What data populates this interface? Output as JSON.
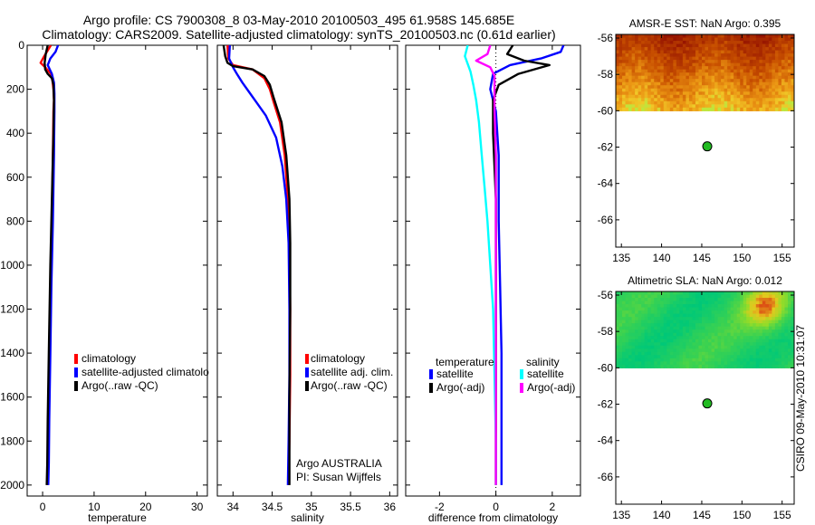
{
  "header": {
    "line1": "Argo profile: CS 7900308_8 03-May-2010 20100503_495 61.958S 145.685E",
    "line2": "Climatology: CARS2009. Satellite-adjusted climatology: synTS_20100503.nc (0.61d earlier)"
  },
  "side_stamp": "CSIRO 09-May-2010 10:31:07",
  "colors": {
    "red": "#ff0000",
    "blue": "#0000ff",
    "black": "#000000",
    "cyan": "#00ffff",
    "magenta": "#ff00ff",
    "marker": "#22bb22"
  },
  "chart_data": [
    {
      "id": "temperature",
      "type": "line",
      "xlabel": "temperature",
      "xlim": [
        -3,
        32
      ],
      "ylim": [
        2050,
        0
      ],
      "xticks": [
        0,
        10,
        20,
        30
      ],
      "yticks": [
        0,
        200,
        400,
        600,
        800,
        1000,
        1200,
        1400,
        1600,
        1800,
        2000
      ],
      "legend": [
        "climatology",
        "satellite-adjusted climatolo",
        "Argo(..raw -QC)"
      ],
      "series": [
        {
          "name": "climatology",
          "color": "red",
          "x": [
            1.6,
            0.3,
            -0.4,
            0.5,
            1.6,
            1.9,
            2.1,
            2.2,
            2.1,
            2.0,
            1.8,
            1.5,
            1.3,
            1.2,
            1.1,
            1.0,
            0.9
          ],
          "y": [
            0,
            50,
            80,
            100,
            130,
            160,
            200,
            250,
            300,
            500,
            800,
            1100,
            1400,
            1600,
            1800,
            1950,
            2000
          ]
        },
        {
          "name": "satellite-adjusted climatology",
          "color": "blue",
          "x": [
            3.0,
            2.5,
            1.5,
            1.0,
            1.8,
            2.2,
            2.3,
            2.3,
            2.2,
            2.0,
            1.7,
            1.5,
            1.3,
            1.2,
            1.1
          ],
          "y": [
            0,
            30,
            60,
            90,
            130,
            170,
            220,
            300,
            500,
            800,
            1100,
            1400,
            1700,
            1900,
            2000
          ]
        },
        {
          "name": "Argo(..raw -QC)",
          "color": "black",
          "x": [
            1.0,
            0.6,
            0.4,
            0.5,
            1.0,
            1.8,
            2.1,
            2.2,
            2.1,
            1.8,
            1.5,
            1.2,
            1.0,
            0.9,
            0.8
          ],
          "y": [
            0,
            40,
            80,
            110,
            130,
            150,
            180,
            250,
            400,
            700,
            1000,
            1400,
            1700,
            1900,
            2000
          ]
        }
      ]
    },
    {
      "id": "salinity",
      "type": "line",
      "xlabel": "salinity",
      "xlim": [
        33.8,
        36.1
      ],
      "ylim": [
        2050,
        0
      ],
      "xticks": [
        34,
        34.5,
        35,
        35.5,
        36
      ],
      "legend": [
        "climatology",
        "satellite adj. clim.",
        "Argo(..raw -QC)"
      ],
      "annotation": [
        "Argo AUSTRALIA",
        "PI: Susan Wijffels"
      ],
      "series": [
        {
          "name": "climatology",
          "color": "red",
          "x": [
            33.93,
            33.94,
            34.0,
            34.25,
            34.4,
            34.47,
            34.52,
            34.6,
            34.66,
            34.7,
            34.72,
            34.73,
            34.73,
            34.72,
            34.71,
            34.71
          ],
          "y": [
            0,
            60,
            90,
            110,
            150,
            200,
            260,
            350,
            500,
            700,
            900,
            1200,
            1500,
            1800,
            1950,
            2000
          ]
        },
        {
          "name": "satellite adj. clim.",
          "color": "blue",
          "x": [
            33.96,
            33.95,
            34.0,
            34.05,
            34.12,
            34.2,
            34.3,
            34.42,
            34.55,
            34.63,
            34.68,
            34.71,
            34.72,
            34.72,
            34.71,
            34.7
          ],
          "y": [
            0,
            60,
            100,
            130,
            170,
            210,
            260,
            320,
            420,
            550,
            700,
            900,
            1200,
            1500,
            1800,
            2000
          ]
        },
        {
          "name": "Argo(..raw -QC)",
          "color": "black",
          "x": [
            33.88,
            33.9,
            33.93,
            34.0,
            34.25,
            34.4,
            34.47,
            34.52,
            34.62,
            34.68,
            34.72,
            34.73,
            34.73,
            34.72,
            34.72
          ],
          "y": [
            0,
            50,
            80,
            95,
            110,
            140,
            180,
            240,
            350,
            500,
            700,
            900,
            1200,
            1600,
            2000
          ]
        }
      ]
    },
    {
      "id": "difference",
      "type": "line",
      "xlabel": "difference from climatology",
      "xlim": [
        -3.2,
        3.0
      ],
      "ylim": [
        2050,
        0
      ],
      "xticks": [
        -2,
        0,
        2
      ],
      "legend_groups": [
        {
          "title": "temperature",
          "entries": [
            "satellite",
            "Argo(-adj)"
          ]
        },
        {
          "title": "salinity",
          "entries": [
            "satellite",
            "Argo(-adj)"
          ]
        }
      ],
      "series": [
        {
          "name": "temperature satellite",
          "color": "blue",
          "x": [
            2.4,
            2.3,
            1.6,
            0.5,
            -0.1,
            -0.2,
            0.0,
            0.1,
            0.1,
            0.15,
            0.2,
            0.2,
            0.2,
            0.2
          ],
          "y": [
            0,
            30,
            60,
            90,
            130,
            200,
            300,
            500,
            800,
            1100,
            1400,
            1700,
            1900,
            2000
          ]
        },
        {
          "name": "temperature Argo(-adj)",
          "color": "black",
          "x": [
            0.6,
            0.4,
            1.0,
            1.9,
            0.8,
            0.1,
            -0.1,
            -0.1,
            0.0,
            0.0,
            0.0,
            0.0,
            0.0,
            0.0
          ],
          "y": [
            0,
            40,
            70,
            90,
            130,
            180,
            250,
            400,
            700,
            1000,
            1300,
            1600,
            1900,
            2000
          ]
        },
        {
          "name": "salinity satellite",
          "color": "cyan",
          "x": [
            -1.0,
            -1.1,
            -0.9,
            -0.8,
            -0.7,
            -0.6,
            -0.5,
            -0.4,
            -0.3,
            -0.2,
            -0.1,
            -0.05,
            0.0,
            0.0
          ],
          "y": [
            0,
            50,
            120,
            180,
            250,
            350,
            500,
            650,
            800,
            1000,
            1200,
            1500,
            1800,
            2000
          ]
        },
        {
          "name": "salinity Argo(-adj)",
          "color": "magenta",
          "x": [
            -0.2,
            -0.3,
            -0.7,
            -0.2,
            -0.05,
            -0.05,
            -0.05,
            0.0,
            0.0,
            0.0,
            0.0,
            0.0
          ],
          "y": [
            0,
            40,
            70,
            100,
            140,
            200,
            300,
            500,
            800,
            1200,
            1600,
            2000
          ]
        }
      ]
    },
    {
      "id": "sst_map",
      "type": "heatmap",
      "title": "AMSR-E SST: NaN Argo: 0.395",
      "xlim": [
        134.3,
        156.5
      ],
      "ylim": [
        -67.5,
        -55.8
      ],
      "xticks": [
        135,
        140,
        145,
        150,
        155
      ],
      "yticks": [
        -56,
        -58,
        -60,
        -62,
        -64,
        -66
      ],
      "data_lat_range": [
        -60,
        -55.8
      ],
      "marker": {
        "lon": 145.685,
        "lat": -61.958
      }
    },
    {
      "id": "sla_map",
      "type": "heatmap",
      "title": "Altimetric SLA: NaN Argo: 0.012",
      "xlim": [
        134.3,
        156.5
      ],
      "ylim": [
        -67.5,
        -55.8
      ],
      "xticks": [
        135,
        140,
        145,
        150,
        155
      ],
      "yticks": [
        -56,
        -58,
        -60,
        -62,
        -64,
        -66
      ],
      "data_lat_range": [
        -60,
        -55.8
      ],
      "marker": {
        "lon": 145.685,
        "lat": -61.958
      }
    }
  ]
}
